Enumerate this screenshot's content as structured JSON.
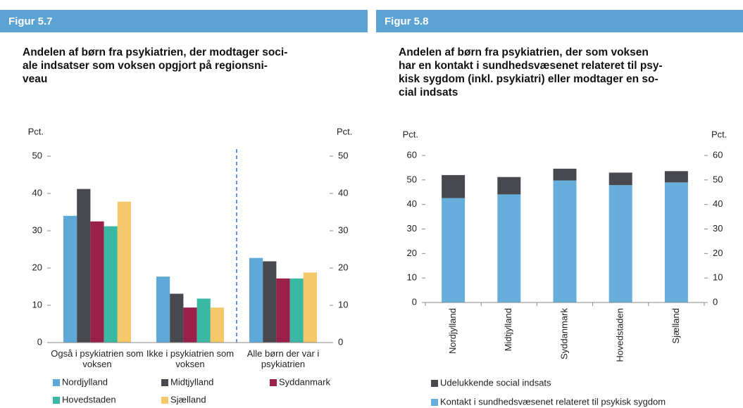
{
  "chart_data": [
    {
      "type": "grouped_bar",
      "figure": "Figur 5.7",
      "title": [
        "Andelen af børn fra psykiatrien, der modtager soci-",
        "ale indsatser som voksen opgjort på regionsni-",
        "veau"
      ],
      "y_label": "Pct.",
      "categories": [
        "Også i psykiatrien som voksen",
        "Ikke i psykiatrien som voksen",
        "Alle børn der var i psykiatrien"
      ],
      "series": [
        {
          "name": "Nordjylland",
          "color": "#5ea9d8",
          "values": [
            34,
            17.7,
            22.7
          ]
        },
        {
          "name": "Midtjylland",
          "color": "#48484f",
          "values": [
            41.2,
            13.1,
            21.8
          ]
        },
        {
          "name": "Syddanmark",
          "color": "#9b2049",
          "values": [
            32.5,
            9.4,
            17.2
          ]
        },
        {
          "name": "Hovedstaden",
          "color": "#3bb8a4",
          "values": [
            31.2,
            11.8,
            17.2
          ]
        },
        {
          "name": "Sjælland",
          "color": "#f5c96a",
          "values": [
            37.8,
            9.4,
            18.8
          ]
        }
      ],
      "ylim": [
        0,
        50
      ],
      "yticks": [
        0,
        10,
        20,
        30,
        40,
        50
      ]
    },
    {
      "type": "stacked_bar",
      "figure": "Figur 5.8",
      "title": [
        "Andelen af børn fra psykiatrien, der som voksen",
        "har en kontakt i sundhedsvæsenet relateret til psy-",
        "kisk sygdom (inkl. psykiatri) eller modtager en so-",
        "cial indsats"
      ],
      "y_label": "Pct.",
      "categories": [
        "Nordjylland",
        "Midtjylland",
        "Syddanmark",
        "Hovedstaden",
        "Sjælland"
      ],
      "series": [
        {
          "name": "Kontakt i sundhedsvæsenet relateret til psykisk sygdom",
          "color": "#66afdc",
          "values": [
            42.6,
            44.1,
            49.8,
            47.9,
            49.0
          ]
        },
        {
          "name": "Udelukkende social indsats",
          "color": "#48484f",
          "values": [
            9.4,
            7.1,
            4.8,
            5.1,
            4.6
          ]
        }
      ],
      "ylim": [
        0,
        60
      ],
      "yticks": [
        0,
        10,
        20,
        30,
        40,
        50,
        60
      ]
    }
  ]
}
